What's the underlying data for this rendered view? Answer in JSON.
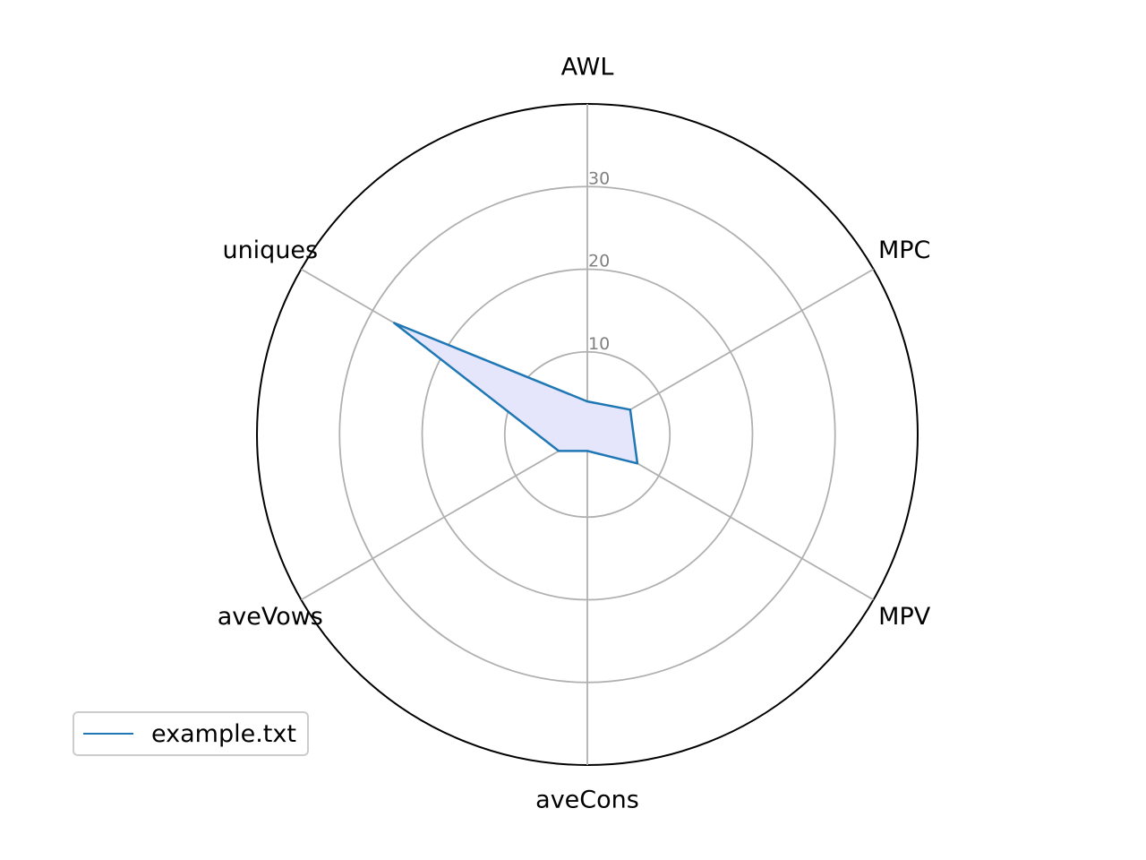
{
  "chart_data": {
    "type": "radar",
    "axes": [
      "AWL",
      "MPC",
      "MPV",
      "aveCons",
      "aveVows",
      "uniques"
    ],
    "rmax": 40,
    "radial_ticks": [
      10,
      20,
      30,
      40
    ],
    "radial_tick_labels": [
      "10",
      "20",
      "30"
    ],
    "series": [
      {
        "name": "example.txt",
        "values": [
          4,
          6,
          7,
          2,
          4,
          27
        ],
        "line_color": "#1f77b4",
        "fill_color": "#e5e5fb"
      }
    ],
    "grid": true,
    "legend_position": "lower-left"
  }
}
